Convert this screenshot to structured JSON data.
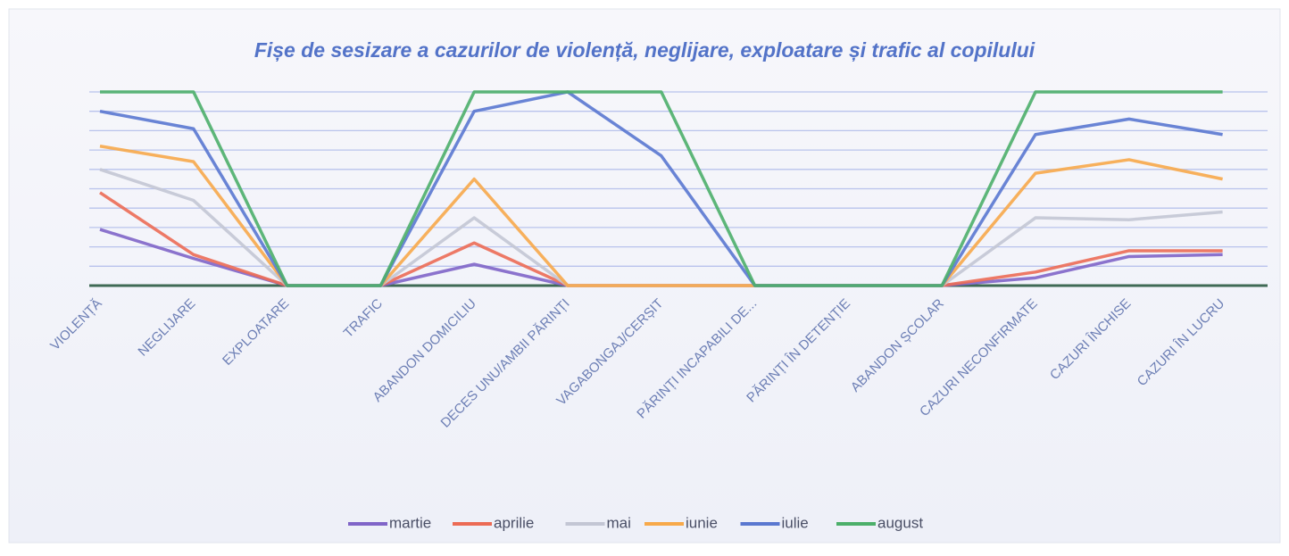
{
  "chart_data": {
    "type": "line",
    "title": "Fișe de sesizare a cazurilor de violență, neglijare, exploatare și trafic al copilului",
    "categories": [
      "VIOLENȚĂ",
      "NEGLIJARE",
      "EXPLOATARE",
      "TRAFIC",
      "ABANDON DOMICILIU",
      "DECES UNU/AMBII PĂRINȚI",
      "VAGABONGAJ/CERȘIT",
      "PĂRINȚI INCAPABILI DE...",
      "PĂRINȚI ÎN DETENȚIE",
      "ABANDON ȘCOLAR",
      "CAZURI NECONFIRMATE",
      "CAZURI ÎNCHISE",
      "CAZURI ÎN LUCRU"
    ],
    "series": [
      {
        "name": "martie",
        "color": "#8065c8",
        "values": [
          2.9,
          1.4,
          0,
          0,
          1.1,
          0,
          0,
          0,
          0,
          0,
          0.4,
          1.5,
          1.6
        ]
      },
      {
        "name": "aprilie",
        "color": "#ec6b55",
        "values": [
          4.8,
          1.6,
          0,
          0,
          2.2,
          0,
          0,
          0,
          0,
          0,
          0.7,
          1.8,
          1.8
        ]
      },
      {
        "name": "mai",
        "color": "#c3c6d4",
        "values": [
          6.0,
          4.4,
          0,
          0,
          3.5,
          0,
          0,
          0,
          0,
          0,
          3.5,
          3.4,
          3.8
        ]
      },
      {
        "name": "iunie",
        "color": "#f7a94a",
        "values": [
          7.2,
          6.4,
          0,
          0,
          5.5,
          0,
          0,
          0,
          0,
          0,
          5.8,
          6.5,
          5.5
        ]
      },
      {
        "name": "iulie",
        "color": "#5a78d0",
        "values": [
          9.0,
          8.1,
          0,
          0,
          9.0,
          10,
          6.7,
          0,
          0,
          0,
          7.8,
          8.6,
          7.8
        ]
      },
      {
        "name": "august",
        "color": "#4caf6a",
        "values": [
          10,
          10,
          0,
          0,
          10,
          10,
          10,
          0,
          0,
          0,
          10,
          10,
          10
        ]
      }
    ],
    "ylim": [
      0,
      10
    ],
    "yticks": [
      0,
      1,
      2,
      3,
      4,
      5,
      6,
      7,
      8,
      9,
      10
    ],
    "grid": true,
    "y_tick_labels": false,
    "legend": "bottom"
  }
}
